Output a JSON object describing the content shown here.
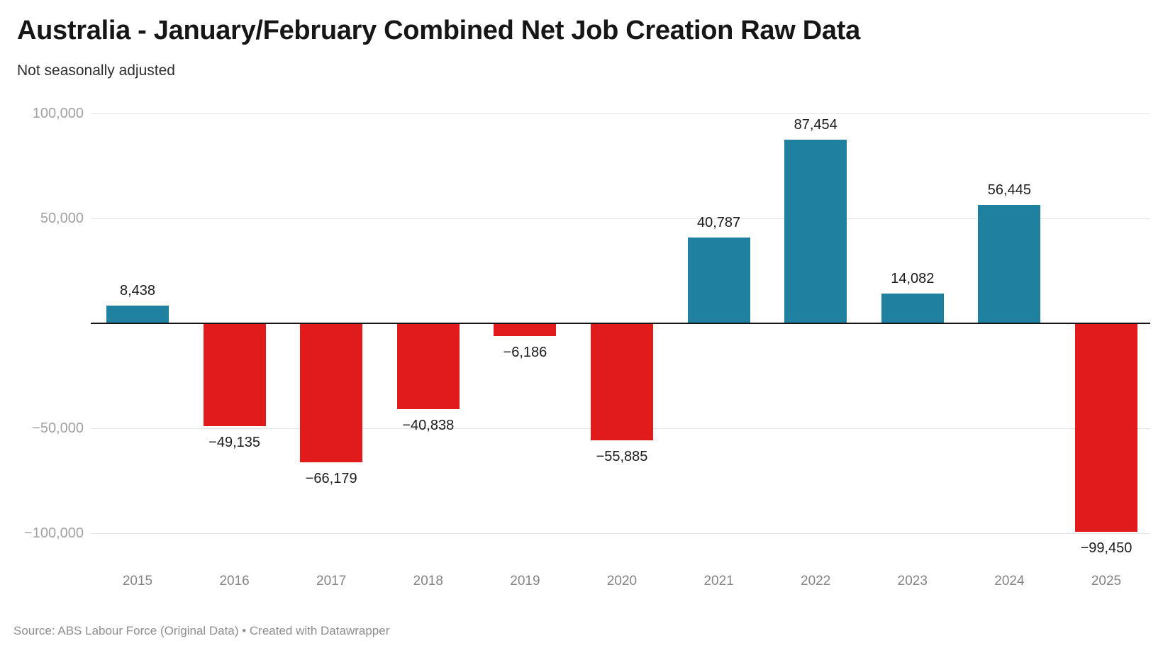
{
  "header": {
    "title": "Australia - January/February Combined Net Job Creation Raw Data",
    "subtitle": "Not seasonally adjusted"
  },
  "chart_data": {
    "type": "bar",
    "title": "Australia - January/February Combined Net Job Creation Raw Data",
    "subtitle": "Not seasonally adjusted",
    "categories": [
      "2015",
      "2016",
      "2017",
      "2018",
      "2019",
      "2020",
      "2021",
      "2022",
      "2023",
      "2024",
      "2025"
    ],
    "values": [
      8438,
      -49135,
      -66179,
      -40838,
      -6186,
      -55885,
      40787,
      87454,
      14082,
      56445,
      -99450
    ],
    "value_labels": [
      "8,438",
      "−49,135",
      "−66,179",
      "−40,838",
      "−6,186",
      "−55,885",
      "40,787",
      "87,454",
      "14,082",
      "56,445",
      "−99,450"
    ],
    "xlabel": "",
    "ylabel": "",
    "ylim": [
      -100000,
      100000
    ],
    "grid": true,
    "legend": "none",
    "y_ticks": [
      {
        "value": 100000,
        "label": "100,000"
      },
      {
        "value": 50000,
        "label": "50,000"
      },
      {
        "value": -50000,
        "label": "−50,000"
      },
      {
        "value": -100000,
        "label": "−100,000"
      }
    ],
    "colors": {
      "positive": "#20809f",
      "negative": "#e11b1c",
      "zero_line": "#151515",
      "gridline": "#e4e4e4"
    }
  },
  "footer": {
    "source": "Source: ABS Labour Force (Original Data) • Created with Datawrapper"
  }
}
